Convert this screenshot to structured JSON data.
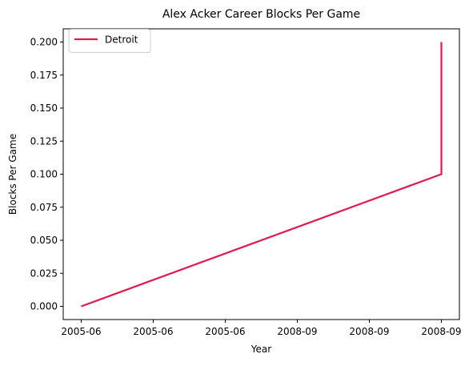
{
  "chart_data": {
    "type": "line",
    "title": "Alex Acker Career Blocks Per Game",
    "xlabel": "Year",
    "ylabel": "Blocks Per Game",
    "x_tick_labels": [
      "2005-06",
      "2005-06",
      "2005-06",
      "2008-09",
      "2008-09",
      "2008-09"
    ],
    "y_tick_labels": [
      "0.000",
      "0.025",
      "0.050",
      "0.075",
      "0.100",
      "0.125",
      "0.150",
      "0.175",
      "0.200"
    ],
    "y_ticks": [
      0.0,
      0.025,
      0.05,
      0.075,
      0.1,
      0.125,
      0.15,
      0.175,
      0.2
    ],
    "xlim": [
      -0.05,
      1.05
    ],
    "ylim": [
      -0.01,
      0.21
    ],
    "grid": false,
    "legend_position": "top-left",
    "series": [
      {
        "name": "Detroit",
        "color": "#e31a4d",
        "points": [
          {
            "x": 0,
            "y": 0.0
          },
          {
            "x": 1,
            "y": 0.1
          },
          {
            "x": 1,
            "y": 0.2
          }
        ]
      }
    ]
  }
}
